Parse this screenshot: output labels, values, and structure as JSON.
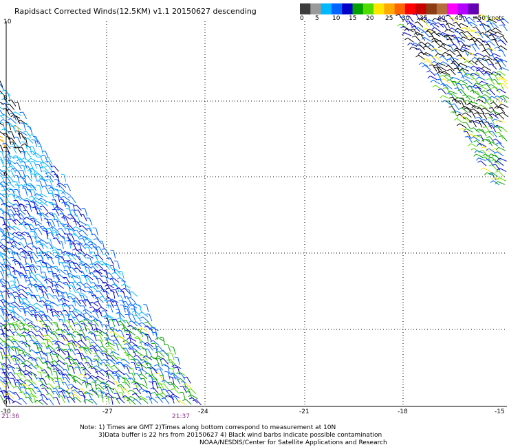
{
  "title": "Rapidsact Corrected Winds(12.5KM) v1.1 20150627 descending",
  "colorbar": {
    "colors": [
      "#3c3c3c",
      "#9a9a9a",
      "#00b8ff",
      "#0064ff",
      "#0000c8",
      "#00a000",
      "#50dc00",
      "#ffe600",
      "#ffaa00",
      "#ff6400",
      "#ff0000",
      "#c80000",
      "#8c3c14",
      "#b46e3c",
      "#ff00ff",
      "#b400ff",
      "#6400b4"
    ],
    "labels": [
      "0",
      "5",
      "10",
      "15",
      "20",
      "25",
      "30",
      "35",
      "40",
      "45",
      ">50 knots"
    ]
  },
  "lat_labels": [
    "10",
    "8",
    "6",
    "4",
    "2",
    "0"
  ],
  "lon_labels": [
    "-30",
    "-27",
    "-24",
    "-21",
    "-18",
    "-15"
  ],
  "time_labels": [
    "21:36",
    "21:37"
  ],
  "notes": [
    "Note: 1) Times are GMT 2)Times along bottom correspond to measurement at 10N",
    "3)Data buffer is 22 hrs from 20150627 4) Black wind barbs indicate possible contamination",
    "NOAA/NESDIS/Center for Satellite Applications and Research"
  ]
}
